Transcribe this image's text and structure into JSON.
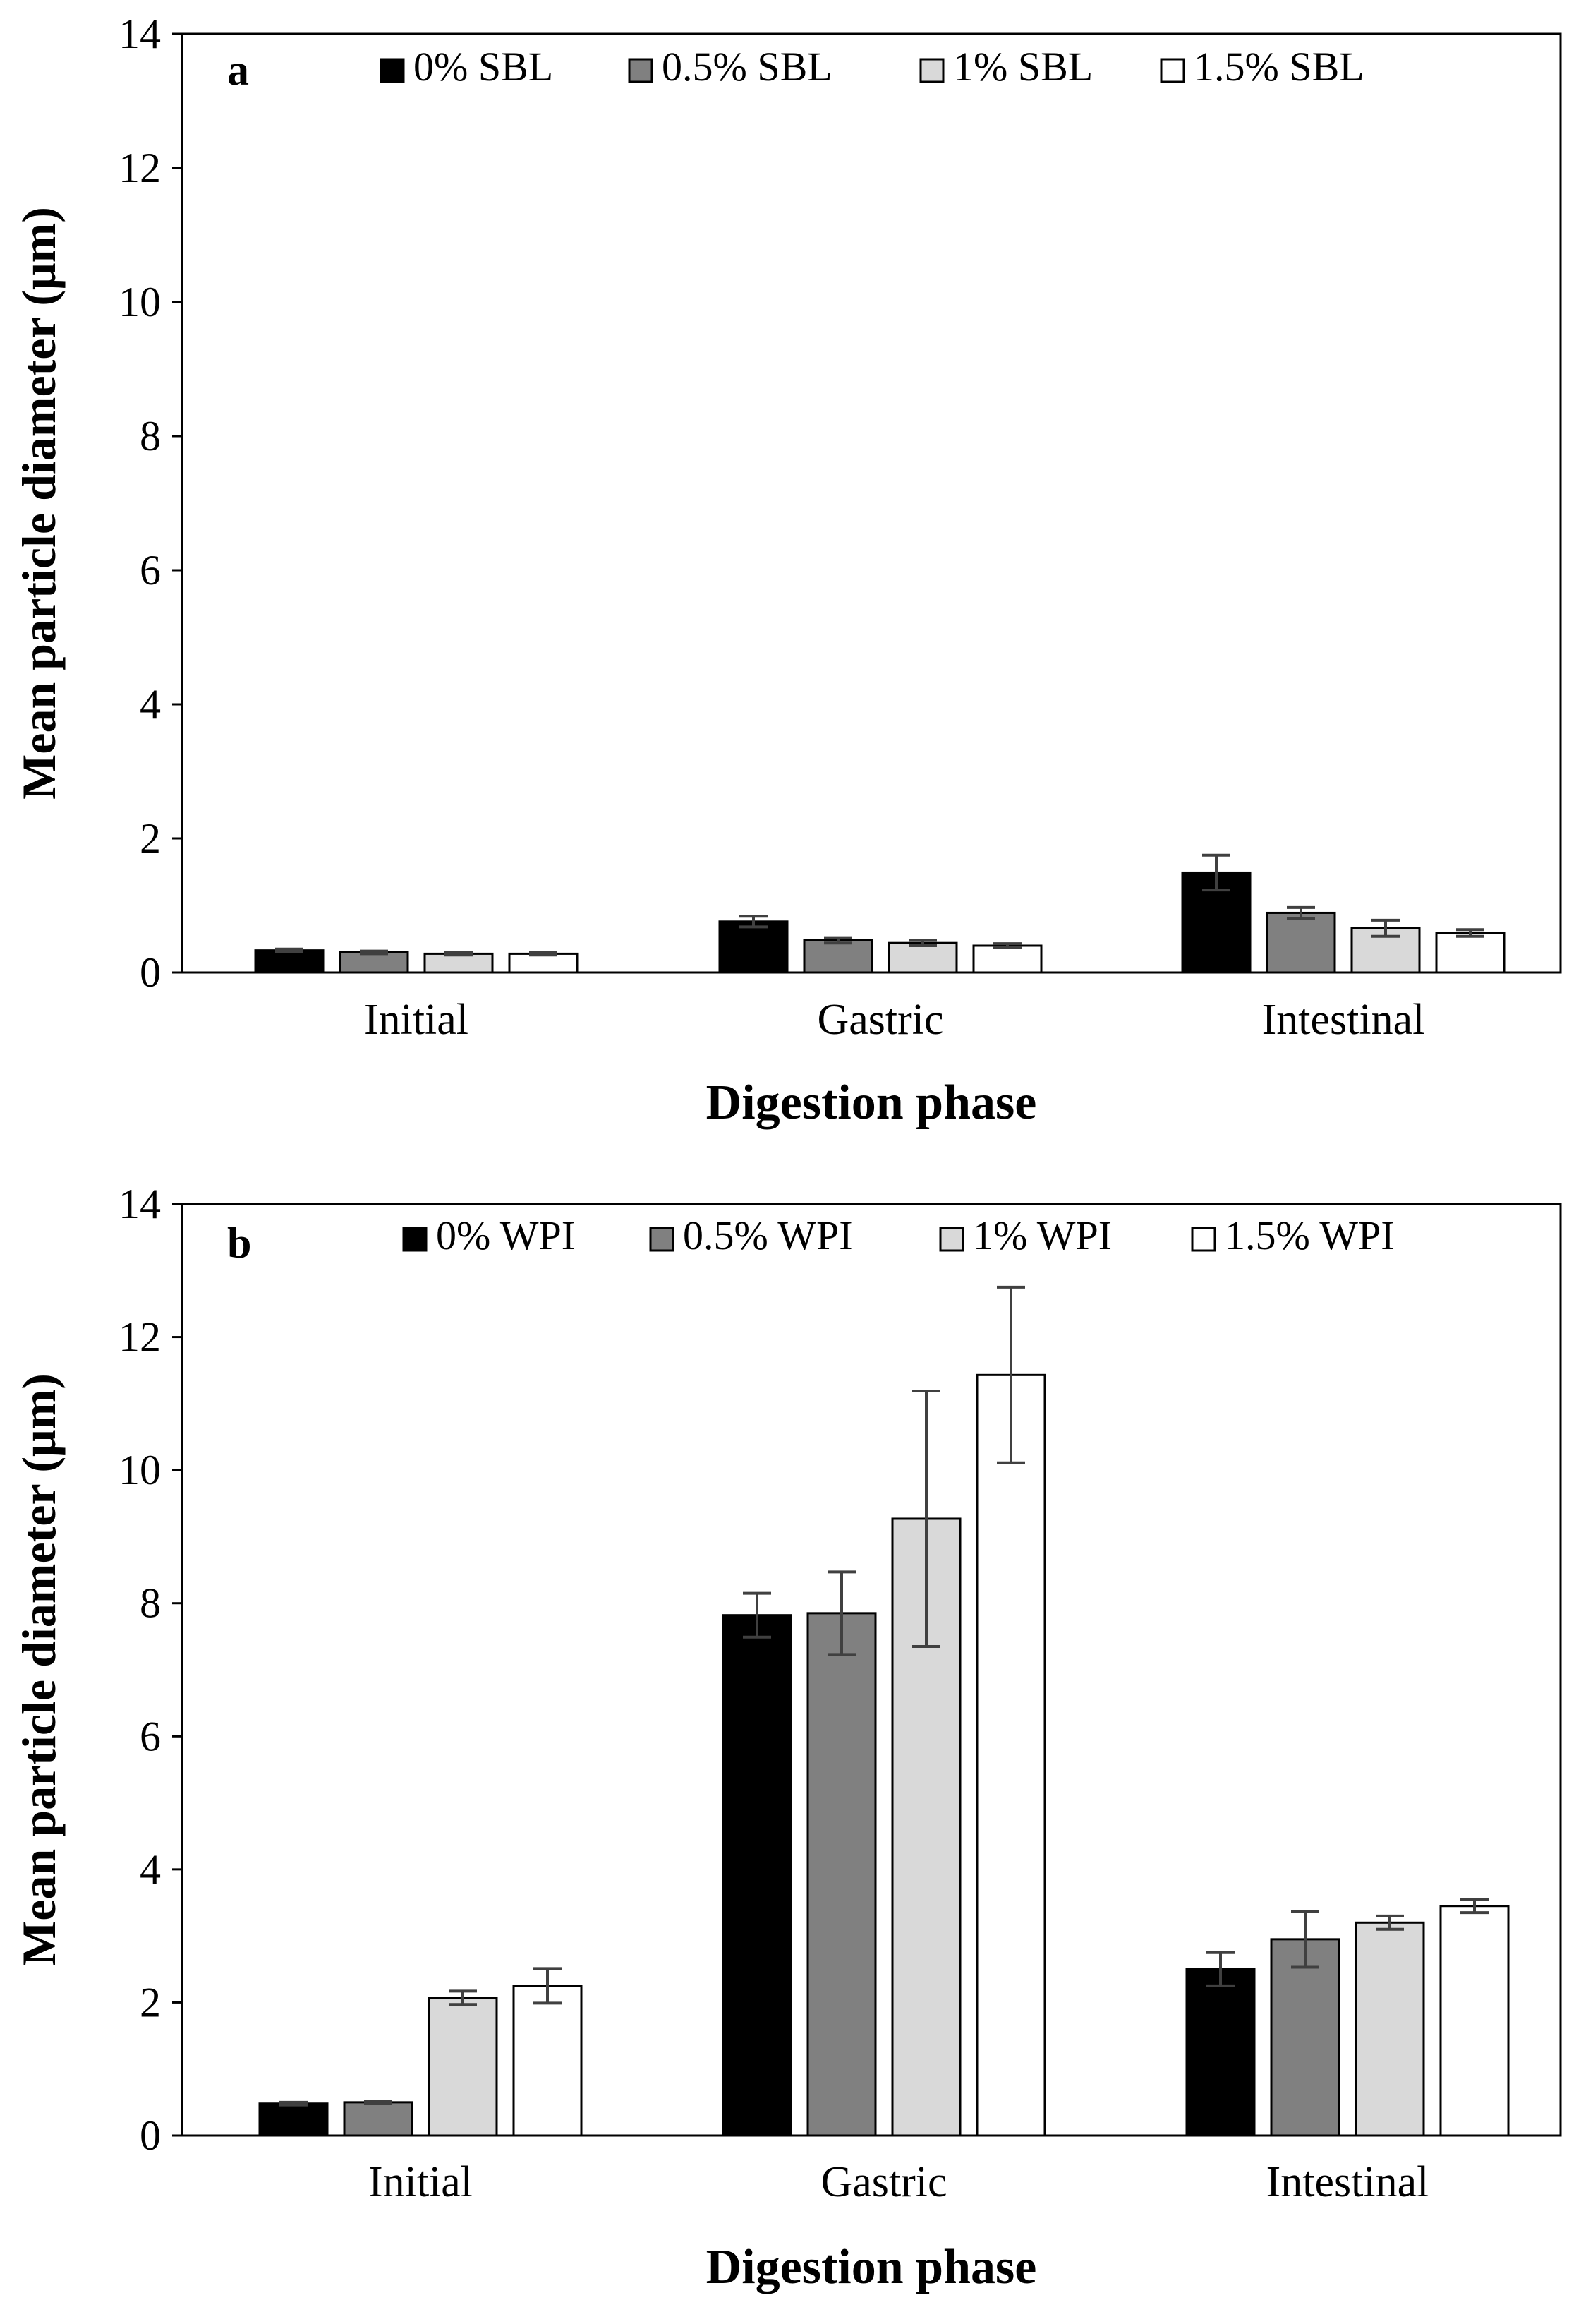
{
  "chart_data": [
    {
      "type": "bar",
      "panel_label": "a",
      "title": "",
      "xlabel": "Digestion phase",
      "ylabel": "Mean particle diameter (μm)",
      "ylim": [
        0,
        14
      ],
      "yticks": [
        "0",
        "2",
        "4",
        "6",
        "8",
        "10",
        "12",
        "14"
      ],
      "ytick_values": [
        0,
        2,
        4,
        6,
        8,
        10,
        12,
        14
      ],
      "categories": [
        "Initial",
        "Gastric",
        "Intestinal"
      ],
      "legend_position": "top",
      "grid": false,
      "series": [
        {
          "name": "0% SBL",
          "color": "#000000",
          "values": [
            0.33,
            0.76,
            1.49
          ],
          "errors": [
            0.02,
            0.08,
            0.26
          ]
        },
        {
          "name": "0.5% SBL",
          "color": "#808080",
          "values": [
            0.3,
            0.48,
            0.89
          ],
          "errors": [
            0.02,
            0.04,
            0.08
          ]
        },
        {
          "name": "1% SBL",
          "color": "#d9d9d9",
          "values": [
            0.28,
            0.44,
            0.66
          ],
          "errors": [
            0.02,
            0.04,
            0.12
          ]
        },
        {
          "name": "1.5% SBL",
          "color": "#ffffff",
          "values": [
            0.28,
            0.4,
            0.59
          ],
          "errors": [
            0.02,
            0.03,
            0.05
          ]
        }
      ]
    },
    {
      "type": "bar",
      "panel_label": "b",
      "title": "",
      "xlabel": "Digestion phase",
      "ylabel": "Mean particle diameter (μm)",
      "ylim": [
        0,
        14
      ],
      "yticks": [
        "0",
        "2",
        "4",
        "6",
        "8",
        "10",
        "12",
        "14"
      ],
      "ytick_values": [
        0,
        2,
        4,
        6,
        8,
        10,
        12,
        14
      ],
      "categories": [
        "Initial",
        "Gastric",
        "Intestinal"
      ],
      "legend_position": "top",
      "grid": false,
      "series": [
        {
          "name": "0% WPI",
          "color": "#000000",
          "values": [
            0.48,
            7.82,
            2.5
          ],
          "errors": [
            0.02,
            0.33,
            0.25
          ]
        },
        {
          "name": "0.5% WPI",
          "color": "#808080",
          "values": [
            0.5,
            7.85,
            2.95
          ],
          "errors": [
            0.02,
            0.62,
            0.42
          ]
        },
        {
          "name": "1% WPI",
          "color": "#d9d9d9",
          "values": [
            2.07,
            9.27,
            3.2
          ],
          "errors": [
            0.1,
            1.92,
            0.1
          ]
        },
        {
          "name": "1.5% WPI",
          "color": "#ffffff",
          "values": [
            2.25,
            11.43,
            3.45
          ],
          "errors": [
            0.26,
            1.32,
            0.1
          ]
        }
      ]
    }
  ]
}
